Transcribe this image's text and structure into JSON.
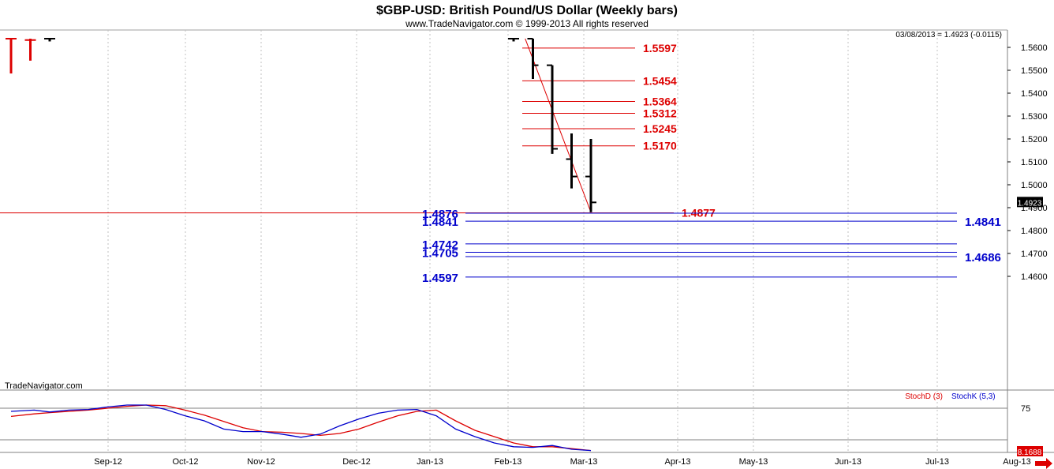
{
  "header": {
    "title": "$GBP-USD:  British Pound/US Dollar  (Weekly bars)",
    "subtitle": "www.TradeNavigator.com © 1999-2013 All rights reserved",
    "quote": "03/08/2013 = 1.4923 (-0.0115)",
    "watermark": "TradeNavigator.com"
  },
  "colors": {
    "red": "#dd0000",
    "blue": "#0000cc",
    "grid": "#c0c0c0",
    "bar": "#000000",
    "logo": "#c8a000"
  },
  "chart_data": [
    {
      "type": "ohlc",
      "title": "$GBP-USD:  British Pound/US Dollar  (Weekly bars)",
      "ylim": [
        1.4546,
        1.5638
      ],
      "x_ticks": [
        "Sep-12",
        "Oct-12",
        "Nov-12",
        "Dec-12",
        "Jan-13",
        "Feb-13",
        "Mar-13",
        "Apr-13",
        "May-13",
        "Jun-13",
        "Jul-13",
        "Aug-13"
      ],
      "y_ticks": [
        "1.5600",
        "1.5500",
        "1.5400",
        "1.5300",
        "1.5200",
        "1.5100",
        "1.5000",
        "1.4900",
        "1.4800",
        "1.4700",
        "1.4600"
      ],
      "last_price_label": "1.4923",
      "bars": [
        {
          "week": 0,
          "color": "red",
          "open": 1.5638,
          "high": 1.5638,
          "low": 1.5486,
          "close": 1.5638
        },
        {
          "week": 1,
          "color": "red",
          "open": 1.5632,
          "high": 1.5638,
          "low": 1.5542,
          "close": 1.5632
        },
        {
          "week": 2,
          "color": "black",
          "open": 1.5638,
          "high": 1.5638,
          "low": 1.5626,
          "close": 1.5638
        },
        {
          "week": 26,
          "color": "black",
          "open": 1.5638,
          "high": 1.5638,
          "low": 1.5626,
          "close": 1.5638
        },
        {
          "week": 27,
          "color": "black",
          "open": 1.5638,
          "high": 1.5638,
          "low": 1.5462,
          "close": 1.5522
        },
        {
          "week": 28,
          "color": "black",
          "open": 1.5522,
          "high": 1.5522,
          "low": 1.5135,
          "close": 1.5157
        },
        {
          "week": 29,
          "color": "black",
          "open": 1.5112,
          "high": 1.5224,
          "low": 1.4984,
          "close": 1.5036
        },
        {
          "week": 30,
          "color": "black",
          "open": 1.5036,
          "high": 1.52,
          "low": 1.488,
          "close": 1.4923
        }
      ],
      "fib_red": [
        {
          "label": "1.5597",
          "value": 1.5597
        },
        {
          "label": "1.5454",
          "value": 1.5454
        },
        {
          "label": "1.5364",
          "value": 1.5364
        },
        {
          "label": "1.5312",
          "value": 1.5312
        },
        {
          "label": "1.5245",
          "value": 1.5245
        },
        {
          "label": "1.5170",
          "value": 1.517
        }
      ],
      "support_red": {
        "label": "1.4877",
        "value": 1.4877
      },
      "fib_blue": [
        {
          "label": "1.4876",
          "value": 1.4876,
          "side": "left"
        },
        {
          "label": "1.4841",
          "value": 1.4841,
          "side": "both"
        },
        {
          "label": "1.4742",
          "value": 1.4742,
          "side": "left"
        },
        {
          "label": "1.4705",
          "value": 1.4705,
          "side": "left"
        },
        {
          "label": "1.4686",
          "value": 1.4686,
          "side": "right"
        },
        {
          "label": "1.4597",
          "value": 1.4597,
          "side": "left"
        }
      ],
      "trendline": {
        "from": {
          "week": 26.6,
          "price": 1.5638
        },
        "to": {
          "week": 30,
          "price": 1.488
        }
      }
    },
    {
      "type": "line",
      "ylim": [
        0,
        100
      ],
      "y_ticks": [
        "75"
      ],
      "reference_lines": [
        75,
        25
      ],
      "last_value_label": "8.1688",
      "legend": [
        {
          "name": "StochD (3)",
          "color": "red"
        },
        {
          "name": "StochK (5,3)",
          "color": "blue"
        }
      ],
      "series": [
        {
          "name": "StochD (3)",
          "color": "red",
          "points": [
            [
              0,
              62
            ],
            [
              1.2,
              66
            ],
            [
              2,
              68
            ],
            [
              3,
              70
            ],
            [
              4,
              72
            ],
            [
              5,
              75
            ],
            [
              6,
              78
            ],
            [
              7,
              80
            ],
            [
              8,
              79
            ],
            [
              9,
              72
            ],
            [
              10,
              64
            ],
            [
              11,
              54
            ],
            [
              12,
              44
            ],
            [
              13,
              38
            ],
            [
              14,
              37
            ],
            [
              15,
              35
            ],
            [
              16,
              32
            ],
            [
              17,
              35
            ],
            [
              18,
              42
            ],
            [
              19,
              53
            ],
            [
              20,
              63
            ],
            [
              21,
              70
            ],
            [
              22,
              72
            ],
            [
              23,
              55
            ],
            [
              24,
              40
            ],
            [
              25,
              30
            ],
            [
              26,
              20
            ],
            [
              27,
              14
            ],
            [
              28,
              14
            ],
            [
              29,
              11
            ],
            [
              30,
              8
            ]
          ]
        },
        {
          "name": "StochK (5,3)",
          "color": "blue",
          "points": [
            [
              0,
              70
            ],
            [
              1.2,
              72
            ],
            [
              2,
              69
            ],
            [
              3,
              72
            ],
            [
              4,
              73
            ],
            [
              5,
              77
            ],
            [
              6,
              80
            ],
            [
              7,
              80
            ],
            [
              8,
              73
            ],
            [
              9,
              63
            ],
            [
              10,
              55
            ],
            [
              11,
              42
            ],
            [
              12,
              38
            ],
            [
              13,
              38
            ],
            [
              14,
              34
            ],
            [
              15,
              29
            ],
            [
              16,
              34
            ],
            [
              17,
              47
            ],
            [
              18,
              58
            ],
            [
              19,
              67
            ],
            [
              20,
              72
            ],
            [
              21,
              73
            ],
            [
              22,
              63
            ],
            [
              23,
              42
            ],
            [
              24,
              30
            ],
            [
              25,
              20
            ],
            [
              26,
              14
            ],
            [
              27,
              13
            ],
            [
              28,
              16
            ],
            [
              29,
              10
            ],
            [
              30,
              8
            ]
          ]
        }
      ]
    }
  ]
}
